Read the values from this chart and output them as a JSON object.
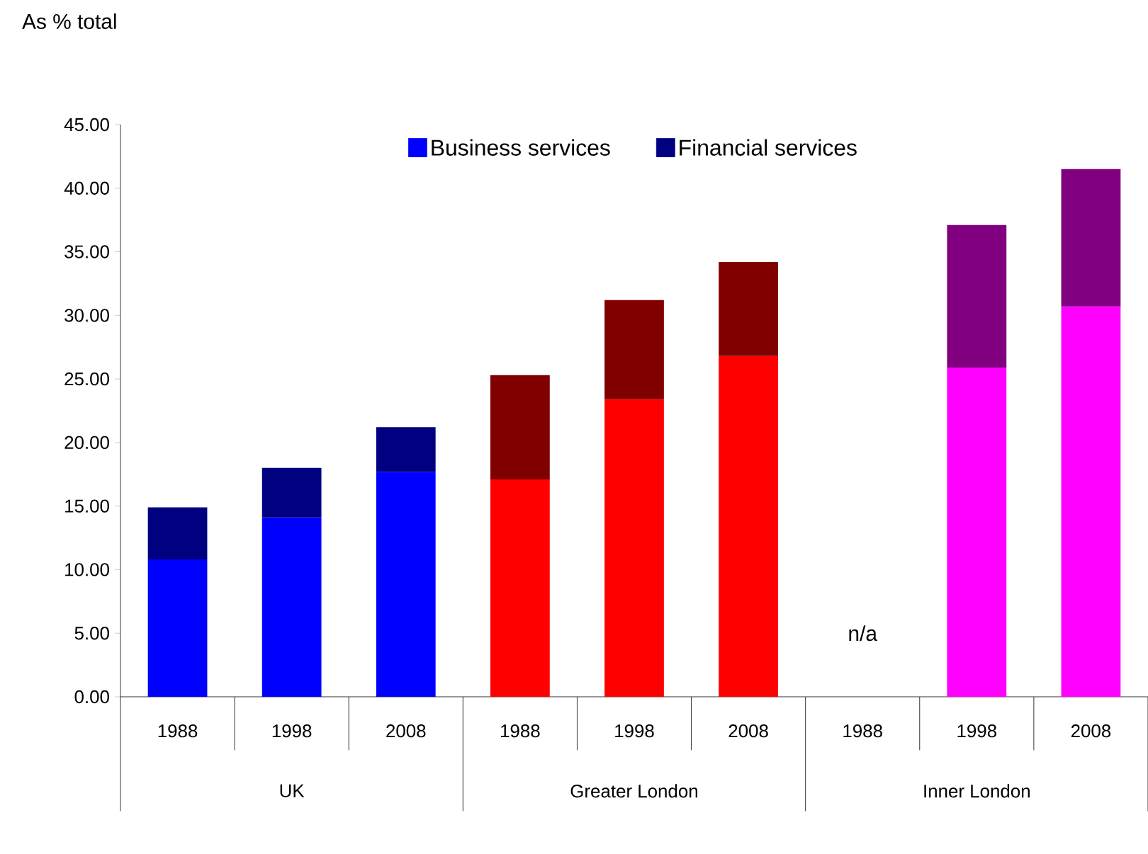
{
  "chart_data": {
    "type": "bar",
    "stacked": true,
    "ylabel": "As % total",
    "categories": [
      "1988",
      "1998",
      "2008",
      "1988",
      "1998",
      "2008",
      "1988",
      "1998",
      "2008"
    ],
    "series": [
      {
        "name": "Business services",
        "color": "#0000ff",
        "colors": [
          "#0000ff",
          "#0000ff",
          "#0000ff",
          "#ff0000",
          "#ff0000",
          "#ff0000",
          "#ff00ff",
          "#ff00ff",
          "#ff00ff"
        ],
        "values": [
          10.8,
          14.1,
          17.7,
          17.1,
          23.4,
          26.8,
          null,
          25.9,
          30.7
        ]
      },
      {
        "name": "Financial services",
        "color": "#000080",
        "colors": [
          "#000080",
          "#000080",
          "#000080",
          "#800000",
          "#800000",
          "#800000",
          "#800080",
          "#800080",
          "#800080"
        ],
        "values": [
          4.1,
          3.9,
          3.5,
          8.2,
          7.8,
          7.4,
          null,
          11.2,
          10.8
        ]
      }
    ],
    "ylim": [
      0,
      45
    ],
    "yticks": [
      {
        "value": 0,
        "label": "0.00"
      },
      {
        "value": 5,
        "label": "5.00"
      },
      {
        "value": 10,
        "label": "10.00"
      },
      {
        "value": 15,
        "label": "15.00"
      },
      {
        "value": 20,
        "label": "20.00"
      },
      {
        "value": 25,
        "label": "25.00"
      },
      {
        "value": 30,
        "label": "30.00"
      },
      {
        "value": 35,
        "label": "35.00"
      },
      {
        "value": 40,
        "label": "40.00"
      },
      {
        "value": 45,
        "label": "45.00"
      }
    ],
    "annotations": [
      "UK",
      "Greater London",
      "Inner London",
      "n/a"
    ],
    "grid": false,
    "legend": "top"
  }
}
